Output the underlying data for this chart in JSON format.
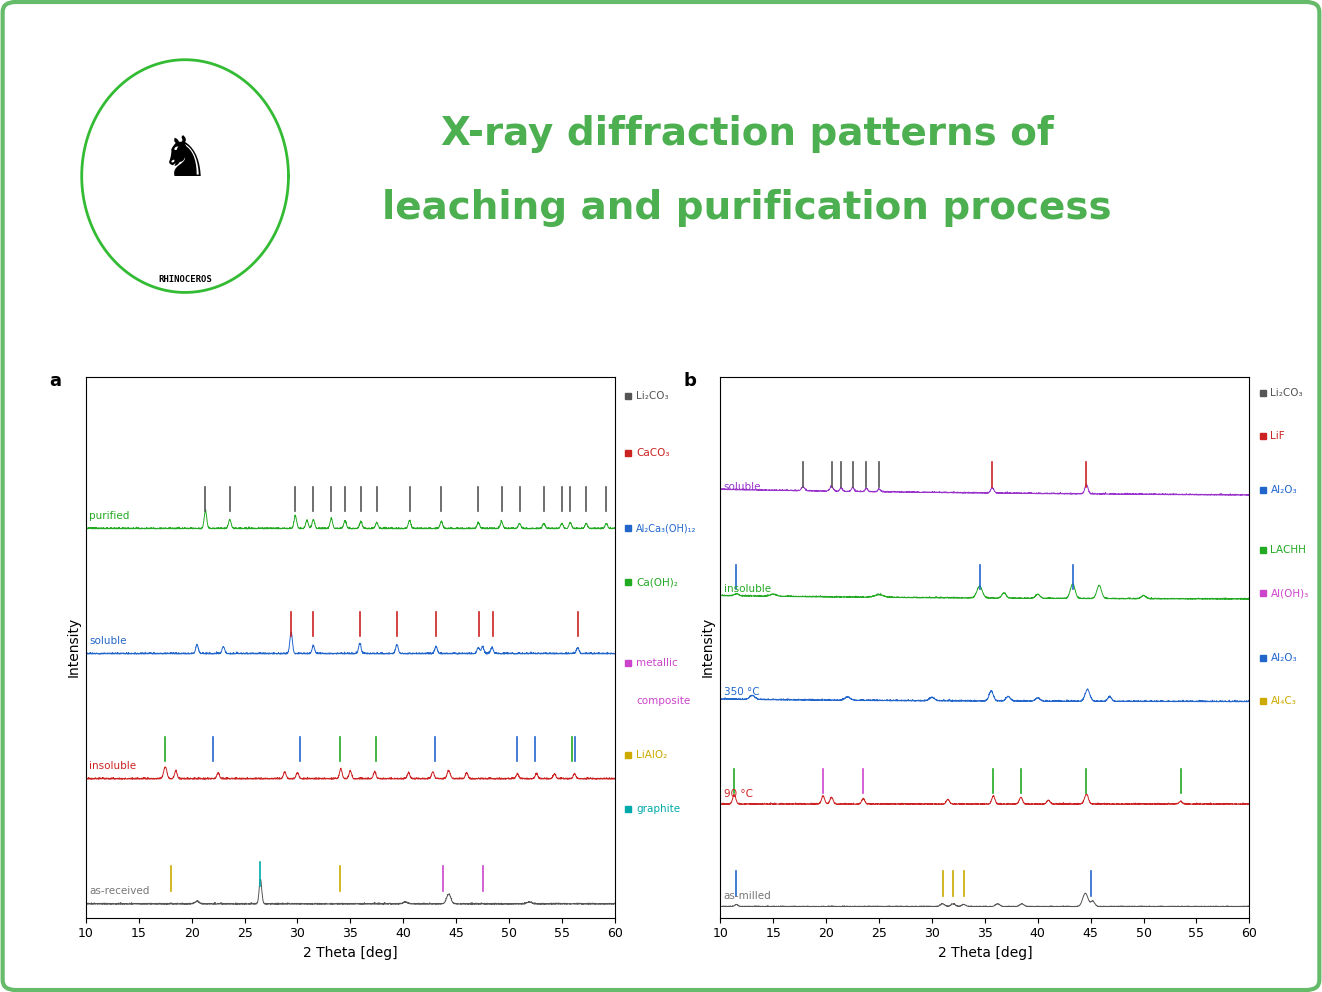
{
  "title_line1": "X-ray diffraction patterns of",
  "title_line2": "leaching and purification process",
  "title_color": "#4caf50",
  "background_color": "#ffffff",
  "border_color": "#66bb6a",
  "fig_width": 13.22,
  "fig_height": 9.92,
  "panel_a": {
    "label": "a",
    "xlabel": "2 Theta [deg]",
    "ylabel": "Intensity",
    "xlim": [
      10,
      60
    ],
    "offsets": [
      0.0,
      0.28,
      0.56,
      0.84
    ],
    "colors": [
      "#555555",
      "#cc2222",
      "#2266cc",
      "#22aa22"
    ],
    "labels": [
      "as-received",
      "insoluble",
      "soluble",
      "purified"
    ],
    "label_colors": [
      "#777777",
      "#cc2222",
      "#2266cc",
      "#22aa22"
    ],
    "legend_entries": [
      {
        "text": "Li₂CO₃",
        "color": "#555555"
      },
      {
        "text": "CaCO₃",
        "color": "#cc2222"
      },
      {
        "text": "Al₂Ca₃(OH)₁₂",
        "color": "#2266cc"
      },
      {
        "text": "Ca(OH)₂",
        "color": "#22aa22"
      },
      {
        "text": "metallic",
        "color": "#cc44cc"
      },
      {
        "text": "composite",
        "color": "#cc44cc"
      },
      {
        "text": "LiAlO₂",
        "color": "#ccaa00"
      },
      {
        "text": "graphite",
        "color": "#00aaaa"
      }
    ]
  },
  "panel_b": {
    "label": "b",
    "xlabel": "2 Theta [deg]",
    "ylabel": "Intensity",
    "xlim": [
      10,
      60
    ],
    "offsets": [
      0.0,
      0.28,
      0.56,
      0.84,
      1.12
    ],
    "colors": [
      "#555555",
      "#cc2222",
      "#2266cc",
      "#22aa22",
      "#9933cc"
    ],
    "labels": [
      "as-milled",
      "90 °C",
      "350 °C",
      "insoluble",
      "soluble"
    ],
    "label_colors": [
      "#777777",
      "#cc2222",
      "#2266cc",
      "#22aa22",
      "#9933cc"
    ],
    "legend_entries": [
      {
        "text": "Li₂CO₃",
        "color": "#555555"
      },
      {
        "text": "LiF",
        "color": "#cc2222"
      },
      {
        "text": "Al₂O₃",
        "color": "#2266cc"
      },
      {
        "text": "LACHH",
        "color": "#22aa22"
      },
      {
        "text": "Al(OH)₃",
        "color": "#cc44cc"
      },
      {
        "text": "Al₂O₃",
        "color": "#2266cc"
      },
      {
        "text": "Al₄C₃",
        "color": "#ccaa00"
      }
    ]
  }
}
